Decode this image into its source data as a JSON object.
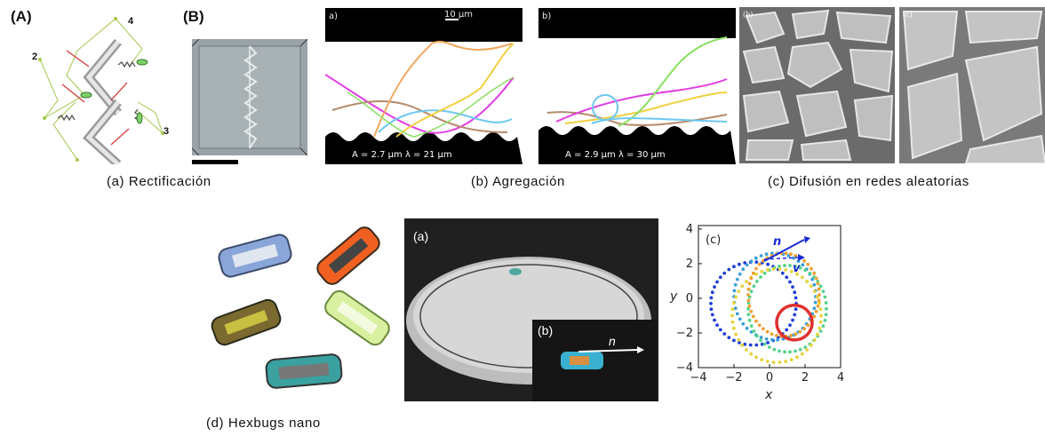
{
  "figure": {
    "panel_a": {
      "letter_A": "(A)",
      "letter_B": "(B)",
      "labels": [
        "2",
        "4",
        "3"
      ],
      "caption": "(a)  Rectificación"
    },
    "panel_b": {
      "sub_a": "a)",
      "sub_b": "b)",
      "scale": "10 μm",
      "params_a": "A = 2.7 μm   λ = 21 μm",
      "params_b": "A = 2.9 μm   λ = 30 μm",
      "caption": "(b)  Agregación"
    },
    "panel_c": {
      "sub_b": "(b)",
      "sub_c": "(c)",
      "caption": "(c)  Difusión en redes aleatorias"
    },
    "panel_d": {
      "photo_a": "(a)",
      "photo_b": "(b)",
      "n_label": "n",
      "caption": "(d)  Hexbugs nano",
      "plot": {
        "sub": "(c)",
        "n": "n",
        "v": "v",
        "xlabel": "x",
        "ylabel": "y",
        "xticks": [
          "−4",
          "−2",
          "0",
          "2",
          "4"
        ],
        "yticks": [
          "4",
          "2",
          "0",
          "−2",
          "−4"
        ]
      }
    }
  },
  "chart_data": {
    "type": "scatter",
    "title": "",
    "xlabel": "x",
    "ylabel": "y",
    "xlim": [
      -4,
      4
    ],
    "ylim": [
      -4,
      4.2
    ],
    "xticks": [
      -4,
      -2,
      0,
      2,
      4
    ],
    "yticks": [
      -4,
      -2,
      0,
      2,
      4
    ],
    "series": [
      {
        "color": "#1f3fd8",
        "center": [
          -0.9,
          -0.3
        ],
        "radius": [
          2.4,
          2.4
        ]
      },
      {
        "color": "#3aa0d8",
        "center": [
          0.3,
          0.1
        ],
        "radius": [
          2.3,
          2.5
        ]
      },
      {
        "color": "#55d38a",
        "center": [
          1.0,
          -0.6
        ],
        "radius": [
          2.2,
          2.5
        ]
      },
      {
        "color": "#e7d23c",
        "center": [
          0.4,
          -1.0
        ],
        "radius": [
          2.5,
          2.7
        ]
      },
      {
        "color": "#f0a030",
        "center": [
          0.8,
          0.2
        ],
        "radius": [
          2.0,
          2.4
        ]
      },
      {
        "color": "#e03030",
        "center": [
          1.4,
          -1.4
        ],
        "radius": [
          1.0,
          1.0
        ]
      }
    ]
  }
}
